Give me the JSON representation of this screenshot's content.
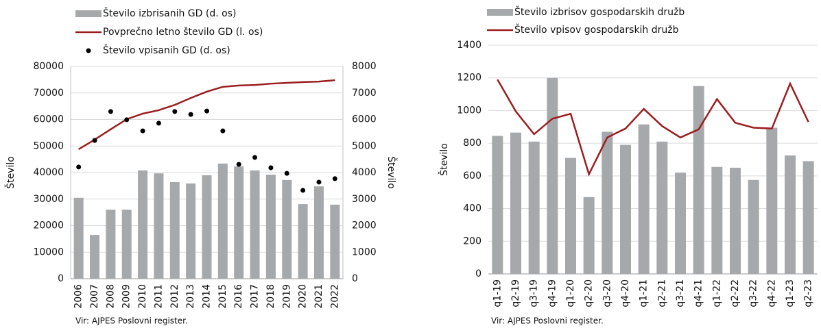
{
  "chart_data": [
    {
      "type": "combo",
      "ylabel": "Število",
      "y2label": "Število",
      "source": "Vir: AJPES Poslovni register.",
      "categories": [
        "2006",
        "2007",
        "2008",
        "2009",
        "2010",
        "2011",
        "2012",
        "2013",
        "2014",
        "2015",
        "2016",
        "2017",
        "2018",
        "2019",
        "2020",
        "2021",
        "2022"
      ],
      "ylim": [
        0,
        80000
      ],
      "yticks": [
        0,
        10000,
        20000,
        30000,
        40000,
        50000,
        60000,
        70000,
        80000
      ],
      "y2lim": [
        0,
        8000
      ],
      "y2ticks": [
        0,
        1000,
        2000,
        3000,
        4000,
        5000,
        6000,
        7000,
        8000
      ],
      "grid": true,
      "legend": "top-left",
      "series": [
        {
          "name": "Število izbrisanih GD (d. os)",
          "kind": "bar",
          "axis": "y2",
          "color": "#a6a9ab",
          "values": [
            3050,
            1650,
            2600,
            2600,
            4080,
            3970,
            3640,
            3590,
            3900,
            4340,
            4230,
            4080,
            3920,
            3720,
            2810,
            3480,
            2790
          ]
        },
        {
          "name": "Povprečno letno število GD  (l. os)",
          "kind": "line",
          "color": "#9b1c1f",
          "values": [
            48800,
            52400,
            56300,
            60100,
            62200,
            63500,
            65500,
            68100,
            70500,
            72300,
            72800,
            73000,
            73500,
            73800,
            74100,
            74300,
            74800
          ]
        },
        {
          "name": "Število vpisanih GD (d. os)",
          "kind": "dot",
          "axis": "y2",
          "color": "#000000",
          "values": [
            4210,
            5210,
            6300,
            5990,
            5570,
            5860,
            6300,
            6190,
            6320,
            5570,
            4310,
            4570,
            4180,
            3970,
            3330,
            3640,
            3770
          ]
        }
      ]
    },
    {
      "type": "combo",
      "ylabel": "Število",
      "source": "Vir: AJPES Poslovni register.",
      "categories": [
        "q1-19",
        "q2-19",
        "q3-19",
        "q4-19",
        "q1-20",
        "q2-20",
        "q3-20",
        "q4-20",
        "q1-21",
        "q2-21",
        "q3-21",
        "q4-21",
        "q1-22",
        "q2-22",
        "q3-22",
        "q4-22",
        "q1-23",
        "q2-23"
      ],
      "ylim": [
        0,
        1400
      ],
      "yticks": [
        0,
        200,
        400,
        600,
        800,
        1000,
        1200,
        1400
      ],
      "grid": true,
      "legend": "top-left",
      "series": [
        {
          "name": "Število izbrisov gospodarskih družb",
          "kind": "bar",
          "color": "#a6a9ab",
          "values": [
            845,
            865,
            810,
            1200,
            710,
            470,
            870,
            790,
            915,
            810,
            620,
            1150,
            655,
            650,
            575,
            895,
            725,
            690
          ]
        },
        {
          "name": "Število vpisov gospodarskih družb",
          "kind": "line",
          "color": "#9b1c1f",
          "values": [
            1190,
            995,
            855,
            950,
            980,
            610,
            835,
            890,
            1010,
            905,
            835,
            885,
            1070,
            925,
            895,
            890,
            1165,
            930
          ]
        }
      ]
    }
  ]
}
